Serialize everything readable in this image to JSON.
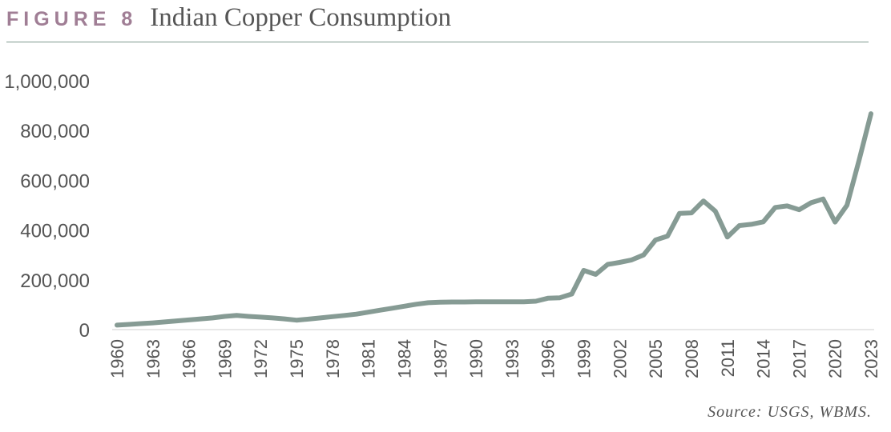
{
  "figure_label": "FIGURE 8",
  "title": "Indian Copper Consumption",
  "source": "Source: USGS, WBMS.",
  "colors": {
    "line": "#869b94",
    "label": "#a07e95",
    "text": "#555555"
  },
  "chart_data": {
    "type": "line",
    "title": "Indian Copper Consumption",
    "xlabel": "",
    "ylabel": "",
    "ylim": [
      0,
      1000000
    ],
    "xlim": [
      1960,
      2023
    ],
    "yticks": [
      0,
      200000,
      400000,
      600000,
      800000,
      1000000
    ],
    "ytick_labels": [
      "0",
      "200,000",
      "400,000",
      "600,000",
      "800,000",
      "1,000,000"
    ],
    "xticks": [
      1960,
      1963,
      1966,
      1969,
      1972,
      1975,
      1978,
      1981,
      1984,
      1987,
      1990,
      1993,
      1996,
      1999,
      2002,
      2005,
      2008,
      2011,
      2014,
      2017,
      2020,
      2023
    ],
    "xtick_labels": [
      "1960",
      "1963",
      "1966",
      "1969",
      "1972",
      "1975",
      "1978",
      "1981",
      "1984",
      "1987",
      "1990",
      "1993",
      "1996",
      "1999",
      "2002",
      "2005",
      "2008",
      "2011",
      "2014",
      "2017",
      "2020",
      "2023"
    ],
    "grid": false,
    "legend": "none",
    "series": [
      {
        "x": [
          1960,
          1961,
          1962,
          1963,
          1964,
          1965,
          1966,
          1967,
          1968,
          1969,
          1970,
          1971,
          1972,
          1973,
          1974,
          1975,
          1976,
          1977,
          1978,
          1979,
          1980,
          1981,
          1982,
          1983,
          1984,
          1985,
          1986,
          1987,
          1988,
          1989,
          1990,
          1991,
          1992,
          1993,
          1994,
          1995,
          1996,
          1997,
          1998,
          1999,
          2000,
          2001,
          2002,
          2003,
          2004,
          2005,
          2006,
          2007,
          2008,
          2009,
          2010,
          2011,
          2012,
          2013,
          2014,
          2015,
          2016,
          2017,
          2018,
          2019,
          2020,
          2021,
          2022,
          2023
        ],
        "values": [
          18000,
          21000,
          24000,
          27000,
          31000,
          35000,
          39000,
          43000,
          47000,
          53000,
          57000,
          53000,
          50000,
          47000,
          43000,
          38000,
          42000,
          47000,
          52000,
          57000,
          62000,
          70000,
          78000,
          86000,
          94000,
          102000,
          108000,
          110000,
          111000,
          111000,
          112000,
          112000,
          112000,
          112000,
          112000,
          114000,
          126000,
          128000,
          143000,
          238000,
          222000,
          262000,
          270000,
          280000,
          300000,
          360000,
          376000,
          467000,
          469000,
          517000,
          476000,
          372000,
          418000,
          423000,
          433000,
          491000,
          497000,
          482000,
          510000,
          525000,
          432000,
          500000,
          680000,
          868000
        ]
      }
    ]
  }
}
